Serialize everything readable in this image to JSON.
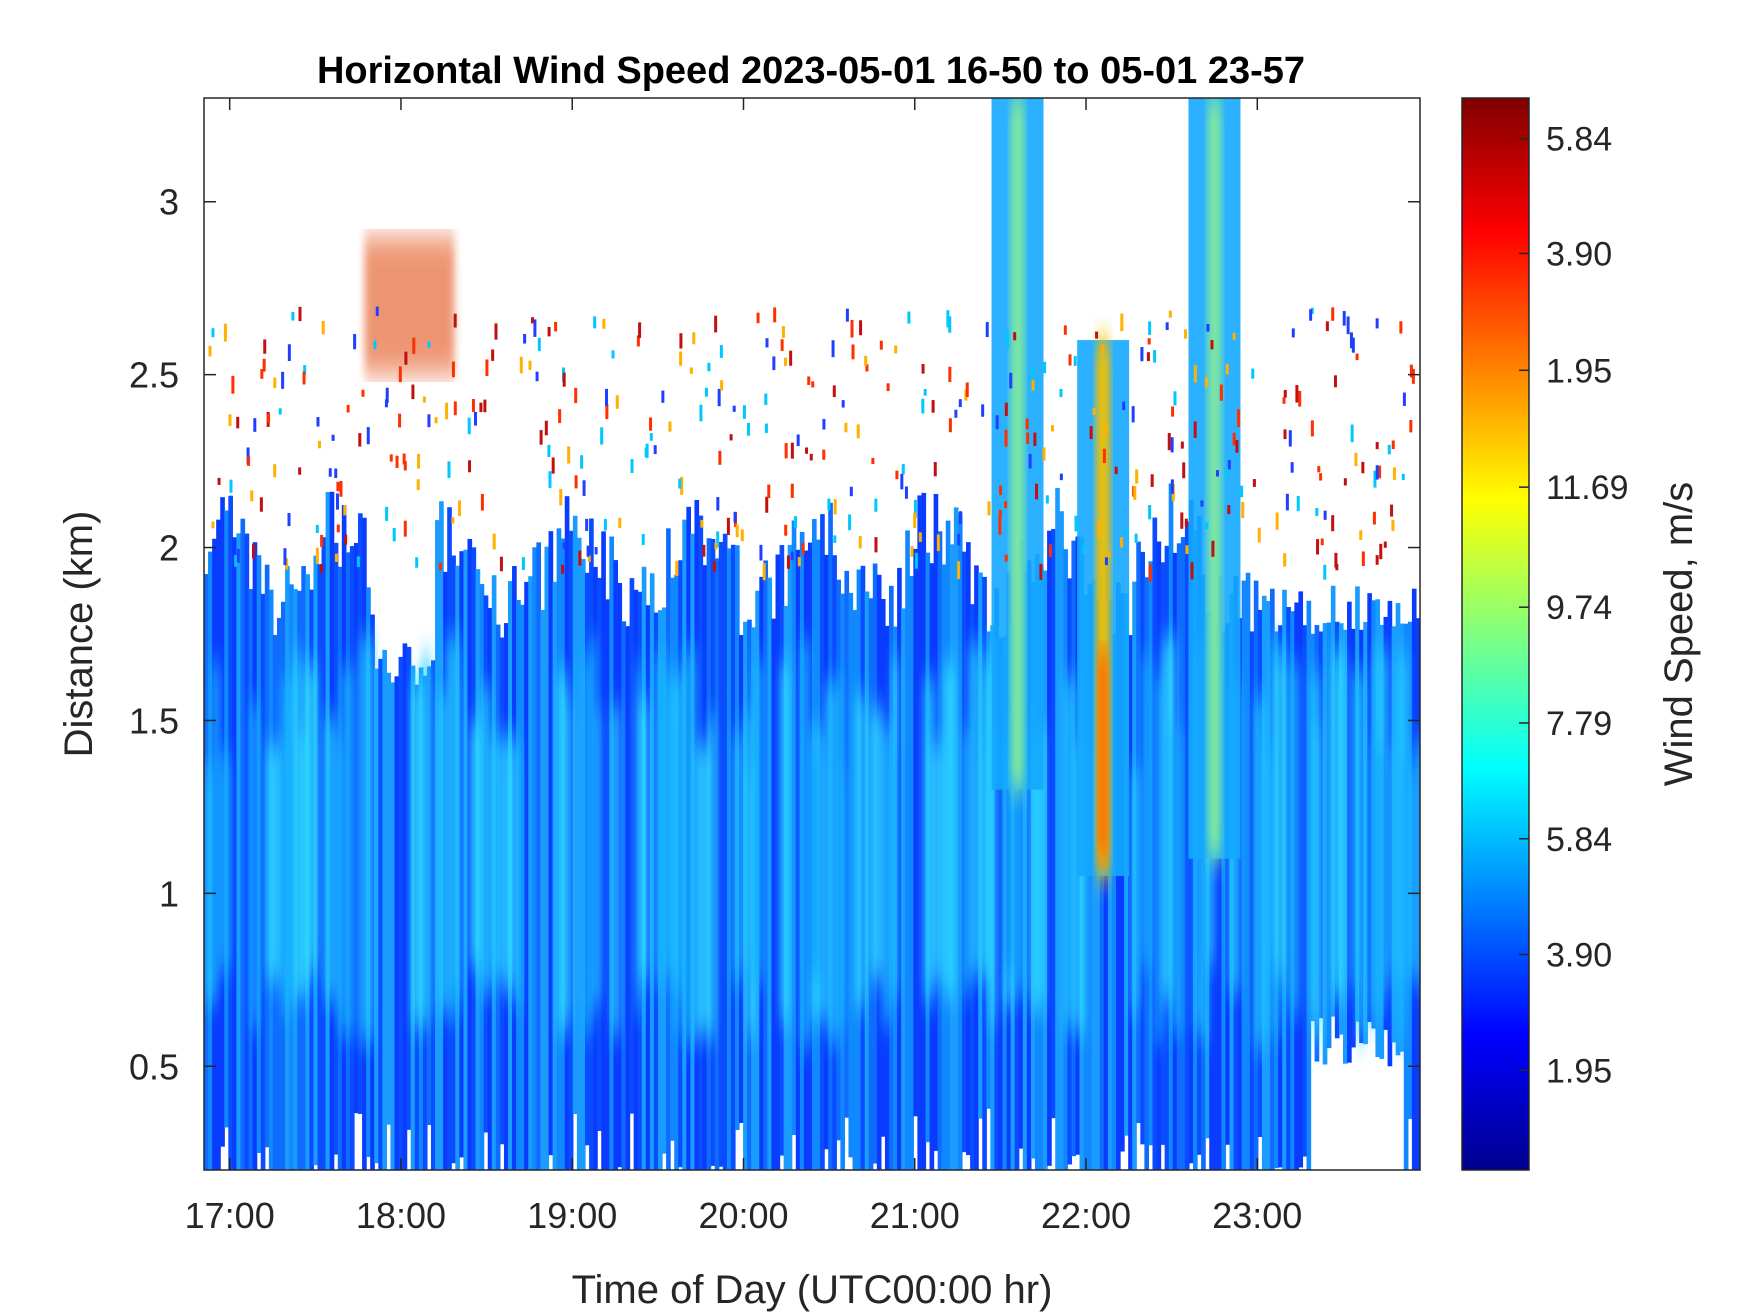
{
  "chart_data": {
    "type": "heatmap",
    "title": "Horizontal Wind Speed 2023-05-01 16-50 to 05-01 23-57",
    "xlabel": "Time of Day (UTC00:00 hr)",
    "ylabel": "Distance (km)",
    "colorbar_label": "Wind Speed, m/s",
    "x_range_hours": [
      16.85,
      23.95
    ],
    "ylim": [
      0.2,
      3.3
    ],
    "x_ticks": [
      {
        "value": 17,
        "label": "17:00"
      },
      {
        "value": 18,
        "label": "18:00"
      },
      {
        "value": 19,
        "label": "19:00"
      },
      {
        "value": 20,
        "label": "20:00"
      },
      {
        "value": 21,
        "label": "21:00"
      },
      {
        "value": 22,
        "label": "22:00"
      },
      {
        "value": 23,
        "label": "23:00"
      }
    ],
    "y_ticks": [
      {
        "value": 0.5,
        "label": "0.5"
      },
      {
        "value": 1,
        "label": "1"
      },
      {
        "value": 1.5,
        "label": "1.5"
      },
      {
        "value": 2,
        "label": "2"
      },
      {
        "value": 2.5,
        "label": "2.5"
      },
      {
        "value": 3,
        "label": "3"
      }
    ],
    "colorbar_ticks": [
      {
        "level": 0.093,
        "label": "1.95"
      },
      {
        "level": 0.201,
        "label": "3.90"
      },
      {
        "level": 0.309,
        "label": "5.84"
      },
      {
        "level": 0.417,
        "label": "7.79"
      },
      {
        "level": 0.525,
        "label": "9.74"
      },
      {
        "level": 0.637,
        "label": "11.69"
      },
      {
        "level": 0.746,
        "label": "1.95"
      },
      {
        "level": 0.855,
        "label": "3.90"
      },
      {
        "level": 0.962,
        "label": "5.84"
      }
    ],
    "colormap": "jet",
    "features": [
      {
        "name": "boundary-layer",
        "x_range": [
          16.85,
          23.95
        ],
        "y_range": [
          0.2,
          2.0
        ],
        "approx_speed": "4-7"
      },
      {
        "name": "jet-core-1",
        "x": 21.6,
        "y_range": [
          1.3,
          3.3
        ],
        "approx_speed": "7-10"
      },
      {
        "name": "jet-core-2",
        "x": 22.1,
        "y_range": [
          1.05,
          2.6
        ],
        "approx_speed": "9-13"
      },
      {
        "name": "jet-core-3",
        "x": 22.75,
        "y_range": [
          1.1,
          3.3
        ],
        "approx_speed": "7-10"
      },
      {
        "name": "upper-patch",
        "x": 18.05,
        "y_range": [
          2.5,
          2.9
        ],
        "approx_speed": "1.95-3.90"
      }
    ]
  }
}
